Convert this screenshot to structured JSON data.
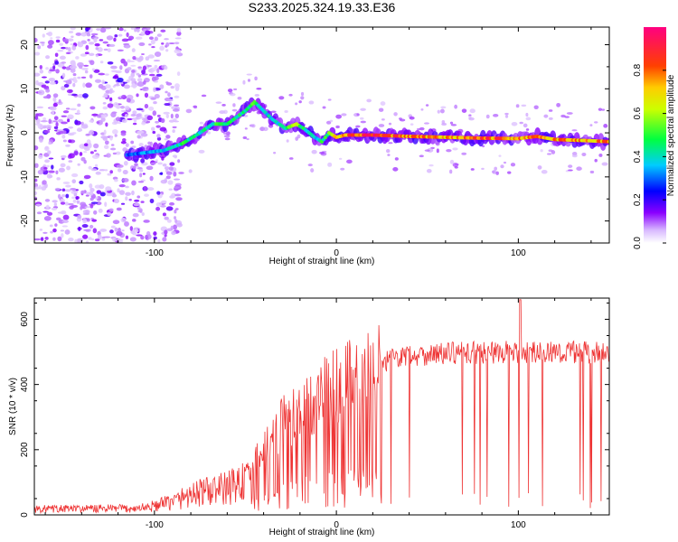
{
  "title": "S233.2025.324.19.33.E36",
  "chart_data": [
    {
      "type": "heatmap",
      "name": "spectrogram",
      "xlabel": "Height of straight line (km)",
      "ylabel": "Frequency (Hz)",
      "xlim": [
        -166,
        150
      ],
      "ylim": [
        -25,
        24
      ],
      "xticks": [
        -100,
        0,
        100
      ],
      "yticks": [
        -20,
        -10,
        0,
        10,
        20
      ],
      "colorbar": {
        "label": "Normalized spectral amplitude",
        "range": [
          0,
          1
        ],
        "ticks": [
          "0.0",
          "0.2",
          "0.4",
          "0.6",
          "0.8"
        ],
        "tick_values": [
          0.0,
          0.2,
          0.4,
          0.6,
          0.8
        ],
        "colors": [
          "#ffffff",
          "#8a00ff",
          "#0000ff",
          "#00ccff",
          "#00ff40",
          "#ffff00",
          "#ff8000",
          "#ff0000",
          "#ff0080"
        ]
      },
      "ridge": {
        "description": "dominant frequency track",
        "x": [
          -115,
          -105,
          -95,
          -85,
          -75,
          -68,
          -60,
          -50,
          -45,
          -40,
          -35,
          -28,
          -22,
          -18,
          -12,
          -8,
          -4,
          0,
          5,
          10,
          20,
          40,
          60,
          80,
          100,
          110,
          120,
          140,
          150
        ],
        "y": [
          -5,
          -4.5,
          -4,
          -2.5,
          0,
          2,
          2,
          5,
          7,
          5,
          3,
          1,
          2,
          1,
          -1,
          -2,
          0,
          -1,
          -0.5,
          -0.5,
          -0.5,
          -0.8,
          -1,
          -1.2,
          -1.3,
          -0.8,
          -1.5,
          -1.8,
          -2
        ],
        "amplitude": [
          0.3,
          0.35,
          0.4,
          0.5,
          0.45,
          0.5,
          0.55,
          0.5,
          0.55,
          0.45,
          0.4,
          0.5,
          0.7,
          0.5,
          0.4,
          0.5,
          0.6,
          0.75,
          0.8,
          0.95,
          0.95,
          0.85,
          0.8,
          0.9,
          0.85,
          0.8,
          0.85,
          0.8,
          0.9
        ]
      }
    },
    {
      "type": "line",
      "name": "snr",
      "xlabel": "Height of straight line (km)",
      "ylabel": "SNR (10 * v/v)",
      "xlim": [
        -166,
        150
      ],
      "ylim": [
        0,
        665
      ],
      "xticks": [
        -100,
        0,
        100
      ],
      "yticks": [
        0,
        200,
        400,
        600
      ],
      "color": "#ee3333",
      "envelope": {
        "x": [
          -166,
          -110,
          -100,
          -90,
          -80,
          -70,
          -60,
          -50,
          -40,
          -30,
          -20,
          -10,
          0,
          10,
          20,
          30,
          40,
          60,
          80,
          100,
          120,
          150
        ],
        "y": [
          20,
          22,
          30,
          45,
          70,
          80,
          90,
          120,
          200,
          280,
          320,
          360,
          400,
          420,
          450,
          480,
          490,
          495,
          498,
          500,
          500,
          495
        ]
      },
      "spike": {
        "x": 101,
        "y": 660
      },
      "dropouts_start_x": -15
    }
  ]
}
